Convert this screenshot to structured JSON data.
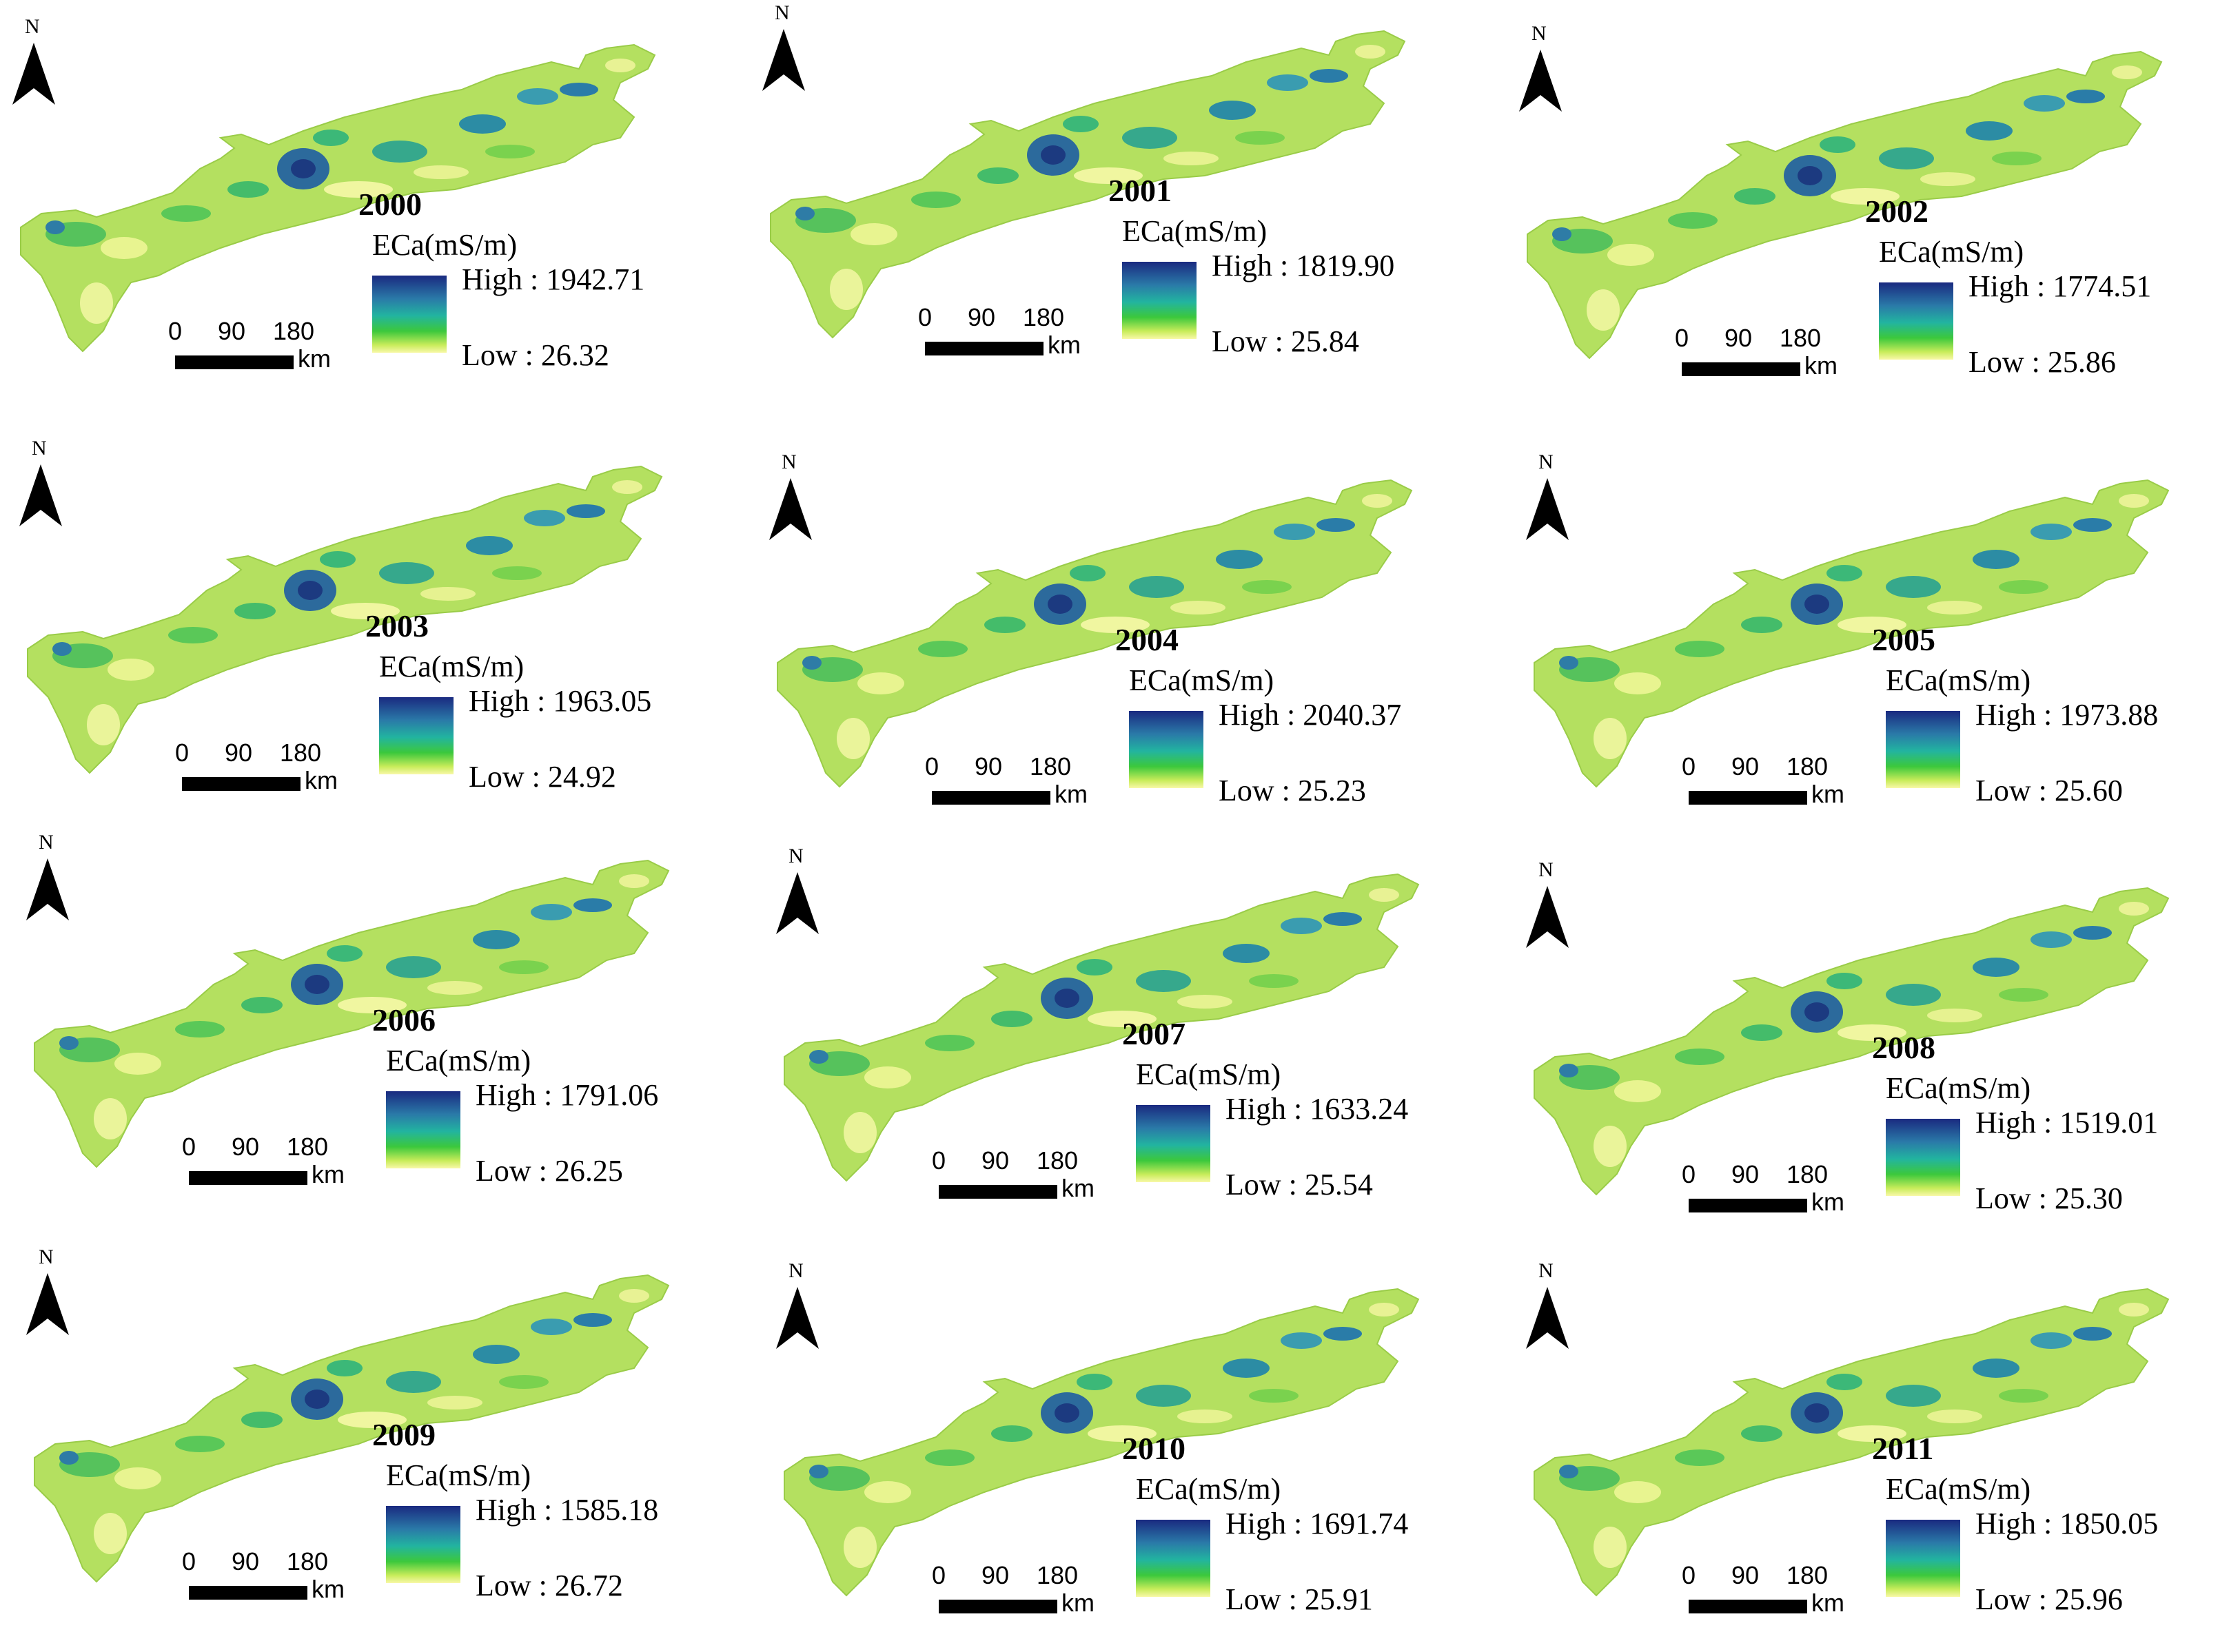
{
  "common": {
    "north_letter": "N",
    "scale_ticks": [
      "0",
      "90",
      "180"
    ],
    "scale_unit": "km",
    "legend_title": "ECa(mS/m)",
    "high_prefix": "High : ",
    "low_prefix": "Low : ",
    "ramp_colors": [
      "#1a2a80",
      "#2a7aa8",
      "#22b4a0",
      "#3cc83c",
      "#c8ec5a",
      "#f8f8a8"
    ]
  },
  "panels": [
    {
      "year": "2000",
      "high": "1942.71",
      "low": "26.32"
    },
    {
      "year": "2001",
      "high": "1819.90",
      "low": "25.84"
    },
    {
      "year": "2002",
      "high": "1774.51",
      "low": "25.86"
    },
    {
      "year": "2003",
      "high": "1963.05",
      "low": "24.92"
    },
    {
      "year": "2004",
      "high": "2040.37",
      "low": "25.23"
    },
    {
      "year": "2005",
      "high": "1973.88",
      "low": "25.60"
    },
    {
      "year": "2006",
      "high": "1791.06",
      "low": "26.25"
    },
    {
      "year": "2007",
      "high": "1633.24",
      "low": "25.54"
    },
    {
      "year": "2008",
      "high": "1519.01",
      "low": "25.30"
    },
    {
      "year": "2009",
      "high": "1585.18",
      "low": "26.72"
    },
    {
      "year": "2010",
      "high": "1691.74",
      "low": "25.91"
    },
    {
      "year": "2011",
      "high": "1850.05",
      "low": "25.96"
    }
  ]
}
